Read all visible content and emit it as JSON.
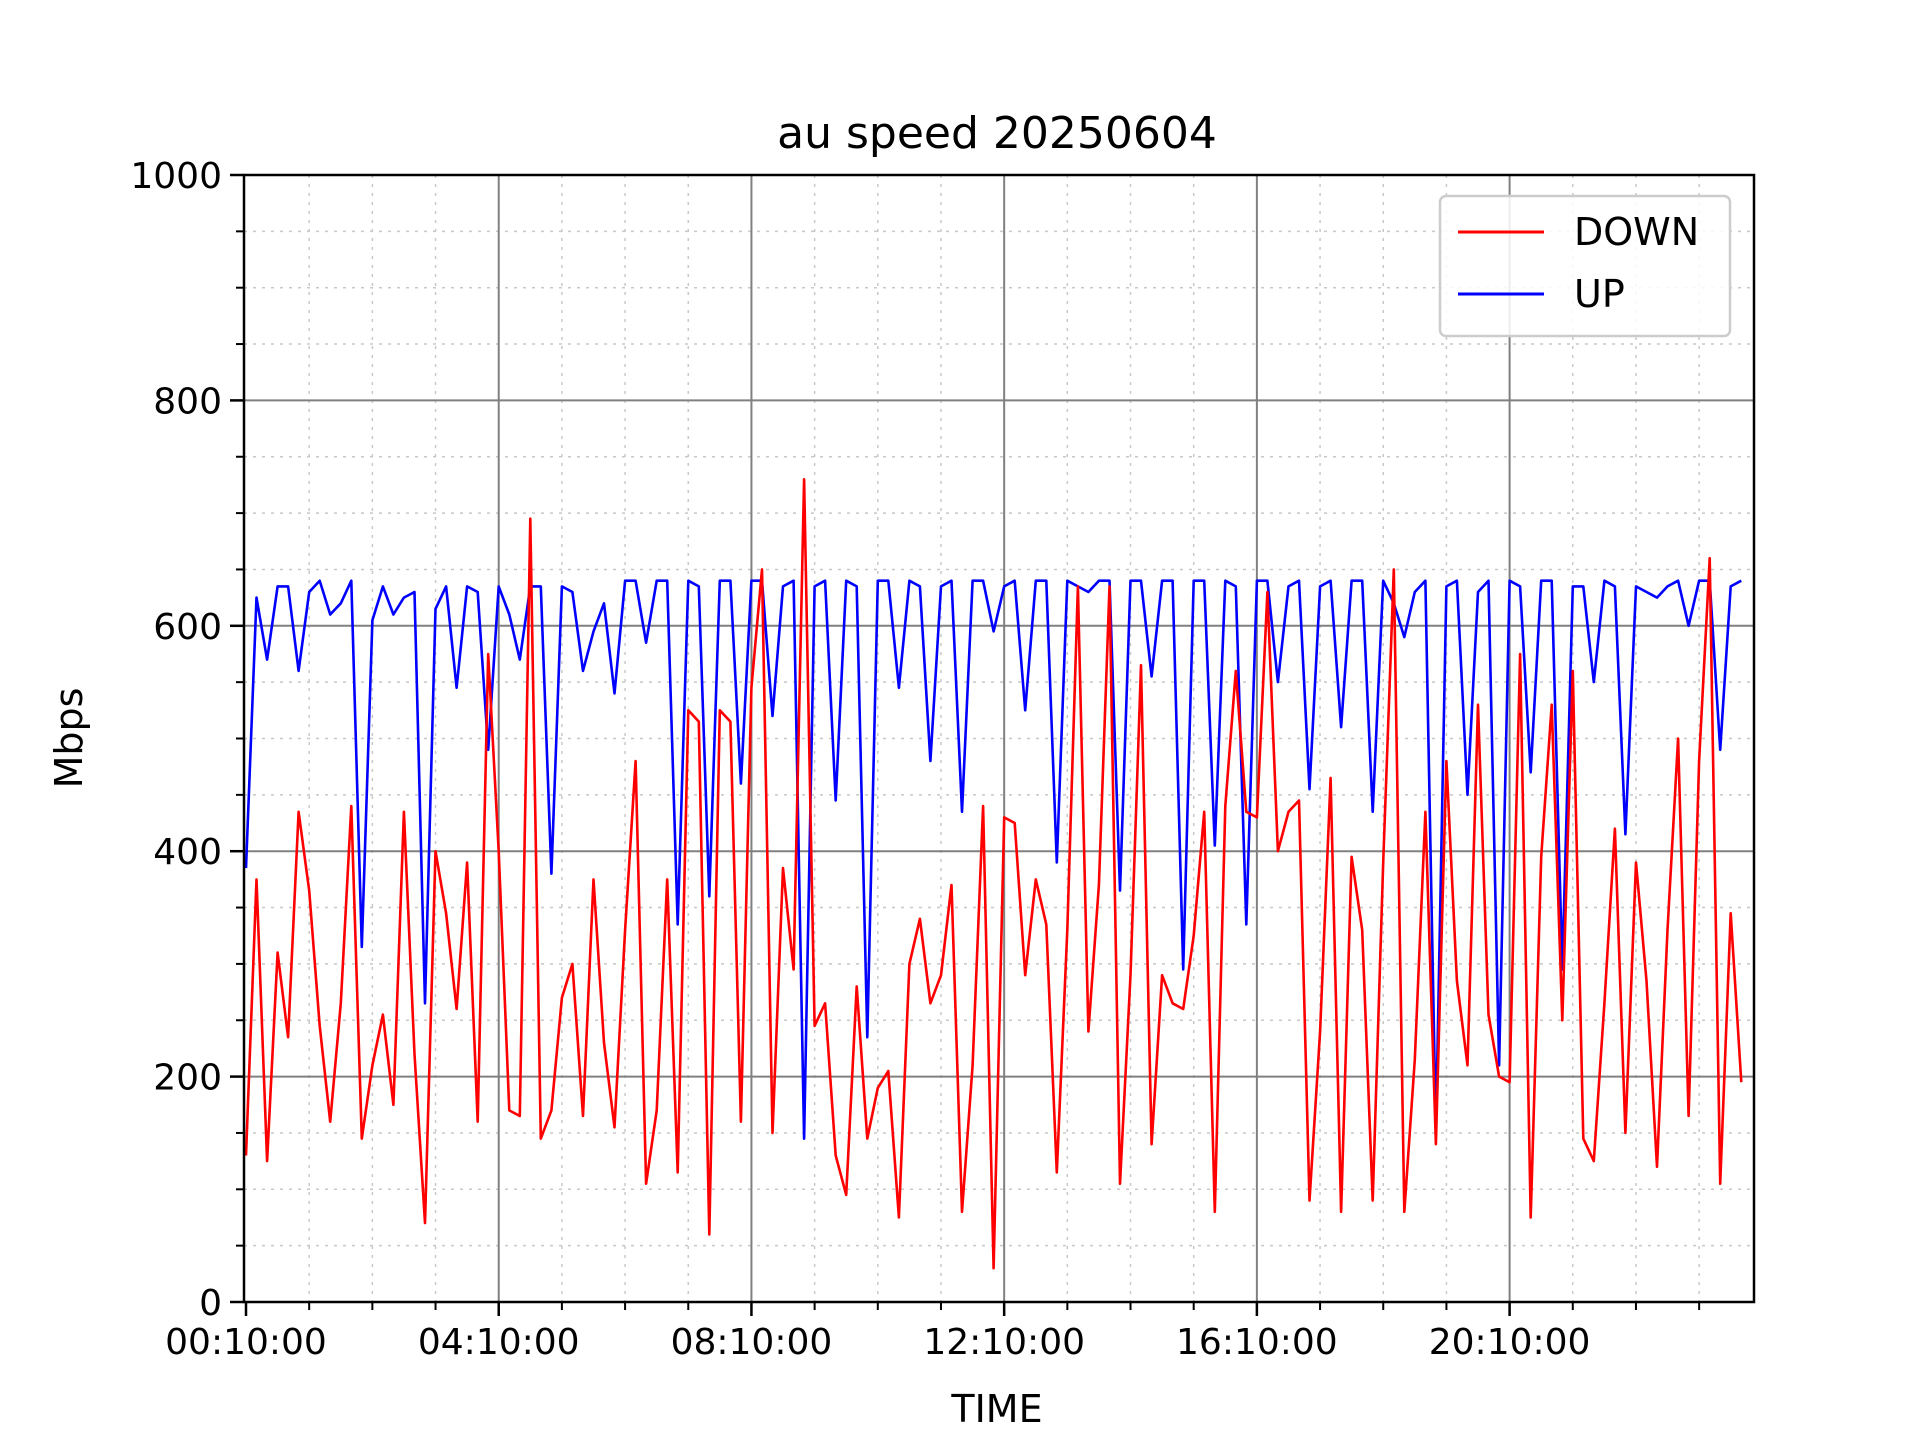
{
  "chart_data": {
    "type": "line",
    "title": "au speed 20250604",
    "xlabel": "TIME",
    "ylabel": "Mbps",
    "ylim": [
      0,
      1000
    ],
    "yticks": [
      0,
      200,
      400,
      600,
      800,
      1000
    ],
    "xticks": [
      "00:10:00",
      "04:10:00",
      "08:10:00",
      "12:10:00",
      "16:10:00",
      "20:10:00"
    ],
    "grid": true,
    "legend_position": "top-right",
    "series": [
      {
        "name": "DOWN",
        "color": "#ff0000",
        "values": [
          130,
          375,
          125,
          310,
          235,
          435,
          365,
          245,
          160,
          265,
          440,
          145,
          210,
          255,
          175,
          435,
          220,
          70,
          400,
          345,
          260,
          390,
          160,
          575,
          400,
          170,
          165,
          695,
          145,
          170,
          270,
          300,
          165,
          375,
          230,
          155,
          330,
          480,
          105,
          170,
          375,
          115,
          525,
          515,
          60,
          525,
          515,
          160,
          545,
          650,
          150,
          385,
          295,
          730,
          245,
          265,
          130,
          95,
          280,
          145,
          190,
          205,
          75,
          300,
          340,
          265,
          290,
          370,
          80,
          210,
          440,
          30,
          430,
          425,
          290,
          375,
          335,
          115,
          330,
          635,
          240,
          370,
          635,
          105,
          290,
          565,
          140,
          290,
          265,
          260,
          325,
          435,
          80,
          440,
          560,
          435,
          430,
          630,
          400,
          435,
          445,
          90,
          240,
          465,
          80,
          395,
          330,
          90,
          390,
          650,
          80,
          215,
          435,
          140,
          480,
          285,
          210,
          530,
          255,
          200,
          195,
          575,
          75,
          395,
          530,
          250,
          560,
          145,
          125,
          265,
          420,
          150,
          390,
          285,
          120,
          330,
          500,
          165,
          480,
          660,
          105,
          345,
          195
        ]
      },
      {
        "name": "UP",
        "color": "#0000ff",
        "values": [
          385,
          625,
          570,
          635,
          635,
          560,
          630,
          640,
          610,
          620,
          640,
          315,
          605,
          635,
          610,
          625,
          630,
          265,
          615,
          635,
          545,
          635,
          630,
          490,
          635,
          610,
          570,
          635,
          635,
          380,
          635,
          630,
          560,
          595,
          620,
          540,
          640,
          640,
          585,
          640,
          640,
          335,
          640,
          635,
          360,
          640,
          640,
          460,
          640,
          640,
          520,
          635,
          640,
          145,
          635,
          640,
          445,
          640,
          635,
          235,
          640,
          640,
          545,
          640,
          635,
          480,
          635,
          640,
          435,
          640,
          640,
          595,
          635,
          640,
          525,
          640,
          640,
          390,
          640,
          635,
          630,
          640,
          640,
          365,
          640,
          640,
          555,
          640,
          640,
          295,
          640,
          640,
          405,
          640,
          635,
          335,
          640,
          640,
          550,
          635,
          640,
          455,
          635,
          640,
          510,
          640,
          640,
          435,
          640,
          620,
          590,
          630,
          640,
          150,
          635,
          640,
          450,
          630,
          640,
          210,
          640,
          635,
          470,
          640,
          640,
          295,
          635,
          635,
          550,
          640,
          635,
          415,
          635,
          630,
          625,
          635,
          640,
          600,
          640,
          640,
          490,
          635,
          640
        ]
      }
    ]
  }
}
